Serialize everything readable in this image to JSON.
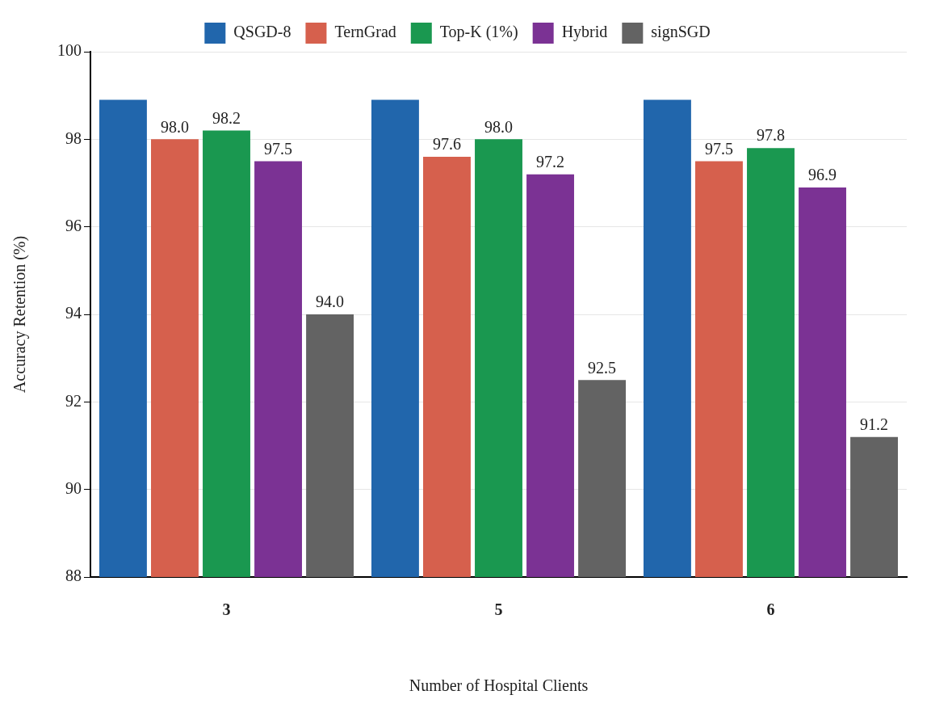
{
  "chart_data": {
    "type": "bar",
    "categories": [
      "3",
      "5",
      "6"
    ],
    "xlabel": "Number of Hospital Clients",
    "ylabel": "Accuracy Retention (%)",
    "ylim": [
      88,
      100
    ],
    "yticks": [
      88,
      90,
      92,
      94,
      96,
      98,
      100
    ],
    "grid": "y",
    "legend": "top",
    "series": [
      {
        "name": "QSGD-8",
        "color": "#2166ac",
        "values": [
          98.9,
          98.9,
          98.9
        ],
        "value_labels": [
          null,
          null,
          null
        ]
      },
      {
        "name": "TernGrad",
        "color": "#d6604d",
        "values": [
          98.0,
          97.6,
          97.5
        ],
        "value_labels": [
          "98.0",
          "97.6",
          "97.5"
        ]
      },
      {
        "name": "Top-K (1%)",
        "color": "#1a9850",
        "values": [
          98.2,
          98.0,
          97.8
        ],
        "value_labels": [
          "98.2",
          "98.0",
          "97.8"
        ]
      },
      {
        "name": "Hybrid",
        "color": "#7b3294",
        "values": [
          97.5,
          97.2,
          96.9
        ],
        "value_labels": [
          "97.5",
          "97.2",
          "96.9"
        ]
      },
      {
        "name": "signSGD",
        "color": "#636363",
        "values": [
          94.0,
          92.5,
          91.2
        ],
        "value_labels": [
          "94.0",
          "92.5",
          "91.2"
        ]
      }
    ]
  }
}
